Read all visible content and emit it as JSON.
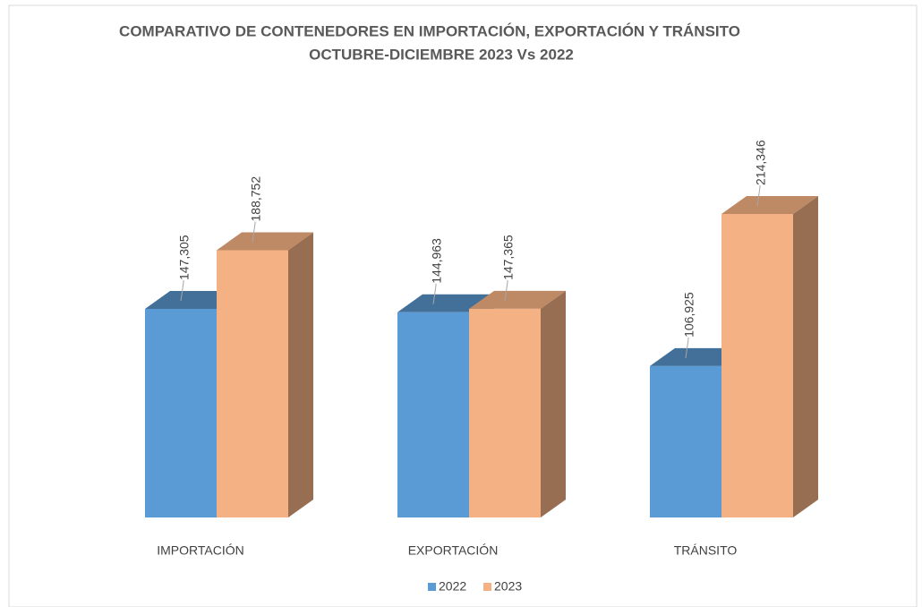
{
  "chart_data": {
    "type": "bar3d",
    "title": "COMPARATIVO  DE CONTENEDORES EN IMPORTACIÓN, EXPORTACIÓN Y TRÁNSITO",
    "subtitle": "OCTUBRE-DICIEMBRE 2023 Vs 2022",
    "categories": [
      "IMPORTACIÓN",
      "EXPORTACIÓN",
      "TRÁNSITO"
    ],
    "series": [
      {
        "name": "2022",
        "color": "#5b9bd5",
        "values": [
          147305,
          144963,
          106925
        ],
        "value_labels": [
          "147,305",
          "144,963",
          "106,925"
        ]
      },
      {
        "name": "2023",
        "color": "#f4b183",
        "values": [
          188752,
          147365,
          214346
        ],
        "value_labels": [
          "188,752",
          "147,365",
          "214,346"
        ]
      }
    ],
    "legend": "bottom"
  }
}
